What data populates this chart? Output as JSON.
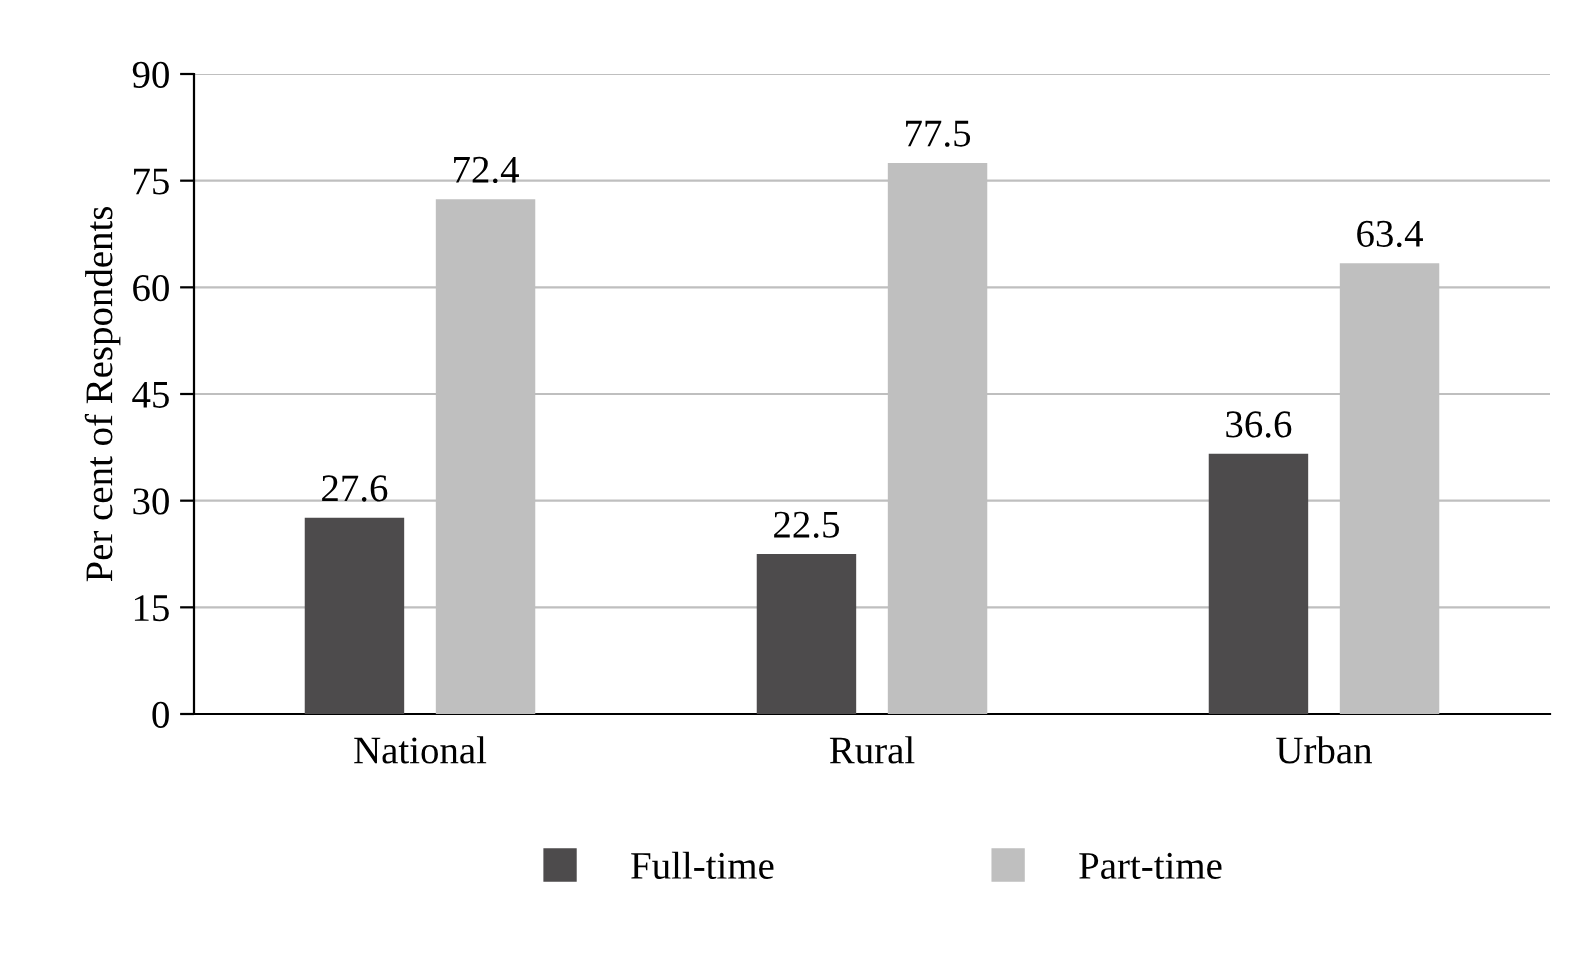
{
  "chart_data": {
    "type": "bar",
    "ylabel": "Per cent of Respondents",
    "categories": [
      "National",
      "Rural",
      "Urban"
    ],
    "series": [
      {
        "name": "Full-time",
        "color": "#4d4b4c",
        "values": [
          27.6,
          22.5,
          36.6
        ]
      },
      {
        "name": "Part-time",
        "color": "#bfbfbf",
        "values": [
          72.4,
          77.5,
          63.4
        ]
      }
    ],
    "ylim": [
      0,
      90
    ],
    "yticks": [
      0,
      15,
      30,
      45,
      60,
      75,
      90
    ],
    "grid": "y",
    "legend": "bottom",
    "data_labels": true
  }
}
